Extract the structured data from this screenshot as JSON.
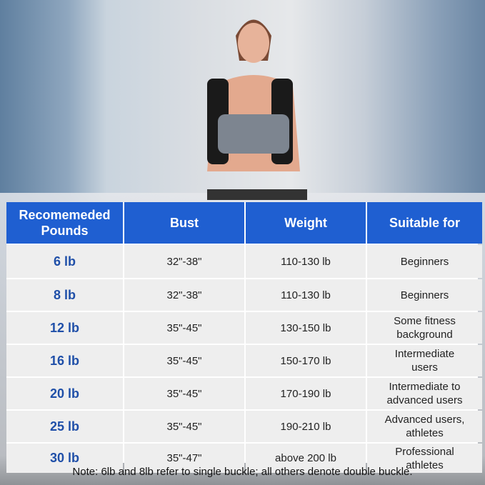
{
  "table": {
    "headers": [
      "Recomemeded Pounds",
      "Bust",
      "Weight",
      "Suitable for"
    ],
    "rows": [
      [
        "6 lb",
        "32\"-38\"",
        "110-130 lb",
        "Beginners"
      ],
      [
        "8 lb",
        "32\"-38\"",
        "110-130 lb",
        "Beginners"
      ],
      [
        "12 lb",
        "35\"-45\"",
        "130-150 lb",
        "Some fitness background"
      ],
      [
        "16 lb",
        "35\"-45\"",
        "150-170 lb",
        "Intermediate users"
      ],
      [
        "20 lb",
        "35\"-45\"",
        "170-190 lb",
        "Intermediate to advanced users"
      ],
      [
        "25 lb",
        "35\"-45\"",
        "190-210 lb",
        "Advanced users, athletes"
      ],
      [
        "30 lb",
        "35\"-47\"",
        "above 200 lb",
        "Professional athletes"
      ]
    ]
  },
  "note": "Note: 6lb and 8lb refer to single buckle; all others denote double buckle.",
  "colors": {
    "header": "#1f5fd1",
    "pounds_text": "#1f4fa8"
  }
}
